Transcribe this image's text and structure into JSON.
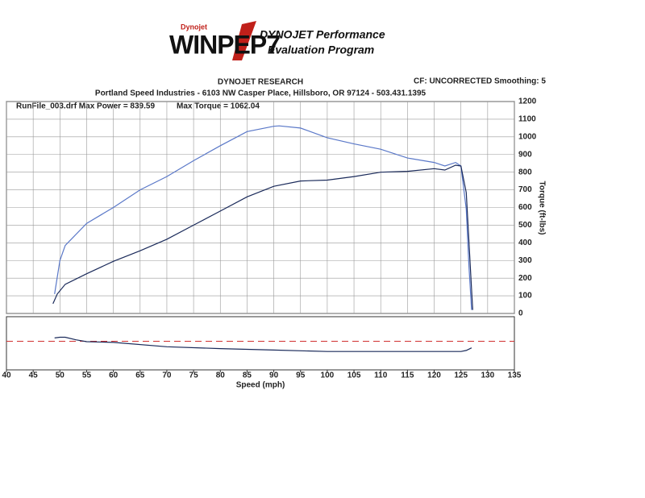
{
  "header": {
    "logo_small": "Dynojet",
    "logo": "WINPEP7",
    "brand_line1": "DYNOJET Performance",
    "brand_line2": "Evaluation Program",
    "company": "DYNOJET RESEARCH",
    "settings": "CF: UNCORRECTED  Smoothing: 5",
    "address": "Portland Speed Industries - 6103 NW Casper Place, Hillsboro, OR 97124 - 503.431.1395",
    "run_info": "RunFile_003.drf Max Power = 839.59",
    "max_torque": "Max Torque = 1062.04"
  },
  "chart_data": [
    {
      "type": "line",
      "y2_label": "Torque (ft-lbs)",
      "xlim": [
        40,
        135
      ],
      "ylim": [
        0,
        1200
      ],
      "y2ticks": [
        0,
        100,
        200,
        300,
        400,
        500,
        600,
        700,
        800,
        900,
        1000,
        1100,
        1200
      ],
      "grid": true,
      "series": [
        {
          "color": "#5a78c8",
          "x": [
            49,
            50,
            51,
            55,
            60,
            65,
            70,
            75,
            80,
            85,
            90,
            91,
            95,
            100,
            105,
            110,
            115,
            120,
            122,
            124,
            125,
            126,
            126.5,
            127
          ],
          "values": [
            110,
            300,
            385,
            510,
            600,
            700,
            775,
            865,
            950,
            1030,
            1060,
            1062,
            1050,
            995,
            960,
            930,
            880,
            855,
            835,
            855,
            835,
            590,
            270,
            20
          ]
        },
        {
          "color": "#1a2a5a",
          "x": [
            48.7,
            49.5,
            51,
            55,
            60,
            65,
            70,
            75,
            80,
            85,
            90,
            95,
            100,
            105,
            110,
            115,
            120,
            122,
            124,
            125,
            126,
            127,
            127.2
          ],
          "values": [
            55,
            110,
            165,
            225,
            295,
            355,
            420,
            500,
            580,
            660,
            720,
            750,
            755,
            775,
            800,
            805,
            820,
            812,
            839.59,
            835,
            685,
            135,
            20
          ]
        }
      ]
    },
    {
      "type": "line",
      "x_label": "Speed (mph)",
      "xlim": [
        40,
        135
      ],
      "ylim": [
        5,
        19.5
      ],
      "xticks": [
        40,
        45,
        50,
        55,
        60,
        65,
        70,
        75,
        80,
        85,
        90,
        95,
        100,
        105,
        110,
        115,
        120,
        125,
        130,
        135
      ],
      "reference": 12.8,
      "reference_color": "#d03030",
      "series": [
        {
          "color": "#1a2a5a",
          "x": [
            49,
            50,
            51,
            53,
            55,
            60,
            70,
            80,
            90,
            100,
            110,
            120,
            125,
            126,
            127
          ],
          "values": [
            13.7,
            13.9,
            13.9,
            13.2,
            12.7,
            12.5,
            11.3,
            10.8,
            10.4,
            10,
            10,
            10,
            10,
            10.3,
            11
          ]
        }
      ]
    }
  ]
}
